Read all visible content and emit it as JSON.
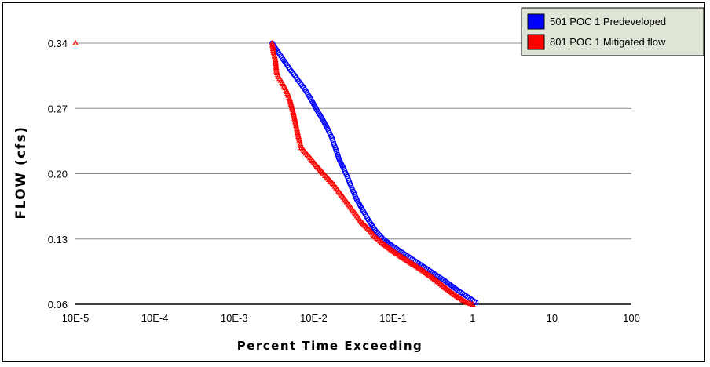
{
  "chart_data": {
    "type": "scatter",
    "xlabel": "Percent Time Exceeding",
    "ylabel": "FLOW (cfs)",
    "x_scale": "log",
    "xlim": [
      1e-05,
      100
    ],
    "ylim": [
      0.06,
      0.34
    ],
    "x_ticks": [
      "10E-5",
      "10E-4",
      "10E-3",
      "10E-2",
      "10E-1",
      "1",
      "10",
      "100"
    ],
    "y_ticks": [
      "0.06",
      "0.13",
      "0.20",
      "0.27",
      "0.34"
    ],
    "y_tick_values": [
      0.06,
      0.13,
      0.2,
      0.27,
      0.34
    ],
    "grid": "horizontal",
    "legend_position": "top-right",
    "series": [
      {
        "name": "501 POC 1 Predeveloped",
        "color": "#0000ff",
        "marker": "circle",
        "points": [
          [
            0.003,
            0.34
          ],
          [
            0.0032,
            0.336
          ],
          [
            0.0036,
            0.33
          ],
          [
            0.004,
            0.324
          ],
          [
            0.0045,
            0.318
          ],
          [
            0.005,
            0.312
          ],
          [
            0.0058,
            0.305
          ],
          [
            0.0065,
            0.299
          ],
          [
            0.0075,
            0.292
          ],
          [
            0.0085,
            0.285
          ],
          [
            0.0095,
            0.278
          ],
          [
            0.011,
            0.268
          ],
          [
            0.013,
            0.258
          ],
          [
            0.015,
            0.248
          ],
          [
            0.017,
            0.238
          ],
          [
            0.019,
            0.226
          ],
          [
            0.021,
            0.215
          ],
          [
            0.024,
            0.205
          ],
          [
            0.027,
            0.195
          ],
          [
            0.03,
            0.185
          ],
          [
            0.035,
            0.172
          ],
          [
            0.042,
            0.16
          ],
          [
            0.05,
            0.149
          ],
          [
            0.06,
            0.139
          ],
          [
            0.075,
            0.13
          ],
          [
            0.1,
            0.122
          ],
          [
            0.15,
            0.112
          ],
          [
            0.2,
            0.105
          ],
          [
            0.3,
            0.095
          ],
          [
            0.45,
            0.085
          ],
          [
            0.65,
            0.075
          ],
          [
            0.9,
            0.067
          ],
          [
            1.1,
            0.062
          ]
        ]
      },
      {
        "name": "801 POC 1 Mitigated flow",
        "color": "#ff0000",
        "marker": "triangle",
        "points": [
          [
            1e-05,
            0.34
          ],
          [
            0.003,
            0.34
          ],
          [
            0.0031,
            0.332
          ],
          [
            0.0033,
            0.322
          ],
          [
            0.0034,
            0.31
          ],
          [
            0.0036,
            0.304
          ],
          [
            0.004,
            0.298
          ],
          [
            0.0045,
            0.29
          ],
          [
            0.005,
            0.28
          ],
          [
            0.0055,
            0.267
          ],
          [
            0.006,
            0.252
          ],
          [
            0.0065,
            0.238
          ],
          [
            0.007,
            0.228
          ],
          [
            0.008,
            0.222
          ],
          [
            0.009,
            0.217
          ],
          [
            0.011,
            0.208
          ],
          [
            0.014,
            0.198
          ],
          [
            0.018,
            0.188
          ],
          [
            0.022,
            0.178
          ],
          [
            0.027,
            0.168
          ],
          [
            0.033,
            0.158
          ],
          [
            0.04,
            0.148
          ],
          [
            0.05,
            0.14
          ],
          [
            0.06,
            0.132
          ],
          [
            0.075,
            0.125
          ],
          [
            0.1,
            0.117
          ],
          [
            0.15,
            0.107
          ],
          [
            0.22,
            0.098
          ],
          [
            0.32,
            0.088
          ],
          [
            0.45,
            0.078
          ],
          [
            0.6,
            0.07
          ],
          [
            0.8,
            0.063
          ],
          [
            1.0,
            0.06
          ]
        ]
      }
    ]
  }
}
